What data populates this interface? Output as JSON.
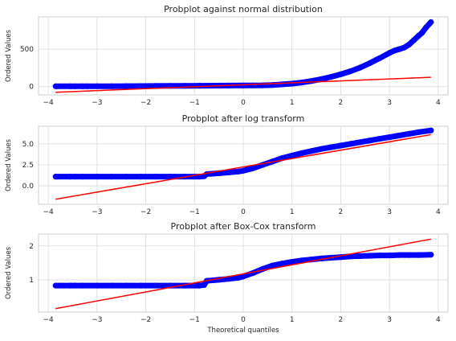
{
  "chart_data": [
    {
      "type": "scatter",
      "title": "Probplot against normal distribution",
      "xlabel": "",
      "ylabel": "Ordered Values",
      "xlim": [
        -4.2,
        4.2
      ],
      "ylim": [
        -110,
        930
      ],
      "xticks": [
        -4,
        -3,
        -2,
        -1,
        0,
        1,
        2,
        3,
        4
      ],
      "yticks": [
        0,
        500
      ],
      "grid": true,
      "series": [
        {
          "kind": "points",
          "color": "#0000ff",
          "x": [
            -3.85,
            -3.55,
            -3.45,
            -3.3,
            -3.2,
            -3.0,
            -2.7,
            -2.4,
            -2.1,
            -1.8,
            -1.5,
            -1.2,
            -0.9,
            -0.6,
            -0.3,
            0.0,
            0.2,
            0.4,
            0.6,
            0.8,
            1.0,
            1.2,
            1.4,
            1.6,
            1.8,
            2.0,
            2.2,
            2.4,
            2.6,
            2.8,
            3.0,
            3.1,
            3.2,
            3.3,
            3.4,
            3.5,
            3.6,
            3.67,
            3.75,
            3.85
          ],
          "y": [
            5,
            5,
            5,
            5,
            5,
            6,
            6,
            7,
            8,
            9,
            10,
            11,
            12,
            13,
            14,
            15,
            16,
            18,
            22,
            30,
            40,
            55,
            75,
            100,
            130,
            165,
            205,
            255,
            315,
            380,
            450,
            480,
            500,
            520,
            560,
            620,
            680,
            720,
            790,
            860
          ]
        },
        {
          "kind": "line",
          "color": "#ff0000",
          "x": [
            -3.85,
            3.85
          ],
          "y": [
            -75,
            125
          ]
        }
      ]
    },
    {
      "type": "scatter",
      "title": "Probplot after log transform",
      "xlabel": "",
      "ylabel": "Ordered Values",
      "xlim": [
        -4.2,
        4.2
      ],
      "ylim": [
        -2.2,
        7.1
      ],
      "xticks": [
        -4,
        -3,
        -2,
        -1,
        0,
        1,
        2,
        3,
        4
      ],
      "yticks": [
        0.0,
        2.5,
        5.0
      ],
      "ytick_labels": [
        "0.0",
        "2.5",
        "5.0"
      ],
      "grid": true,
      "series": [
        {
          "kind": "points",
          "color": "#0000ff",
          "x": [
            -3.85,
            -3.55,
            -3.45,
            -3.3,
            -3.0,
            -2.7,
            -2.4,
            -2.1,
            -1.8,
            -1.5,
            -1.2,
            -0.9,
            -0.8,
            -0.75,
            -0.5,
            -0.3,
            -0.1,
            0.0,
            0.2,
            0.4,
            0.6,
            0.8,
            1.0,
            1.2,
            1.4,
            1.6,
            1.8,
            2.0,
            2.2,
            2.4,
            2.6,
            2.8,
            3.0,
            3.2,
            3.4,
            3.6,
            3.85
          ],
          "y": [
            1.1,
            1.1,
            1.1,
            1.1,
            1.1,
            1.1,
            1.1,
            1.1,
            1.1,
            1.1,
            1.1,
            1.1,
            1.15,
            1.4,
            1.5,
            1.6,
            1.7,
            1.8,
            2.1,
            2.5,
            2.9,
            3.3,
            3.6,
            3.9,
            4.15,
            4.4,
            4.6,
            4.8,
            5.0,
            5.2,
            5.4,
            5.6,
            5.8,
            6.0,
            6.2,
            6.4,
            6.6
          ]
        },
        {
          "kind": "line",
          "color": "#ff0000",
          "x": [
            -3.85,
            3.85
          ],
          "y": [
            -1.6,
            6.1
          ]
        }
      ]
    },
    {
      "type": "scatter",
      "title": "Probplot after Box-Cox transform",
      "xlabel": "Theoretical quantiles",
      "ylabel": "Ordered Values",
      "xlim": [
        -4.2,
        4.2
      ],
      "ylim": [
        0.05,
        2.35
      ],
      "xticks": [
        -4,
        -3,
        -2,
        -1,
        0,
        1,
        2,
        3,
        4
      ],
      "yticks": [
        1,
        2
      ],
      "grid": true,
      "series": [
        {
          "kind": "points",
          "color": "#0000ff",
          "x": [
            -3.85,
            -3.55,
            -3.45,
            -3.3,
            -3.0,
            -2.7,
            -2.4,
            -2.1,
            -1.8,
            -1.5,
            -1.2,
            -0.9,
            -0.8,
            -0.75,
            -0.5,
            -0.3,
            -0.1,
            0.0,
            0.2,
            0.4,
            0.6,
            0.8,
            1.0,
            1.2,
            1.4,
            1.6,
            1.8,
            2.0,
            2.2,
            2.4,
            2.6,
            2.8,
            3.0,
            3.2,
            3.4,
            3.6,
            3.85
          ],
          "y": [
            0.83,
            0.83,
            0.83,
            0.83,
            0.83,
            0.83,
            0.83,
            0.83,
            0.83,
            0.83,
            0.83,
            0.83,
            0.85,
            0.97,
            1.0,
            1.03,
            1.06,
            1.1,
            1.2,
            1.32,
            1.42,
            1.48,
            1.53,
            1.57,
            1.6,
            1.63,
            1.65,
            1.67,
            1.69,
            1.7,
            1.71,
            1.72,
            1.72,
            1.73,
            1.73,
            1.73,
            1.74
          ]
        },
        {
          "kind": "line",
          "color": "#ff0000",
          "x": [
            -3.85,
            3.85
          ],
          "y": [
            0.15,
            2.2
          ]
        }
      ]
    }
  ]
}
